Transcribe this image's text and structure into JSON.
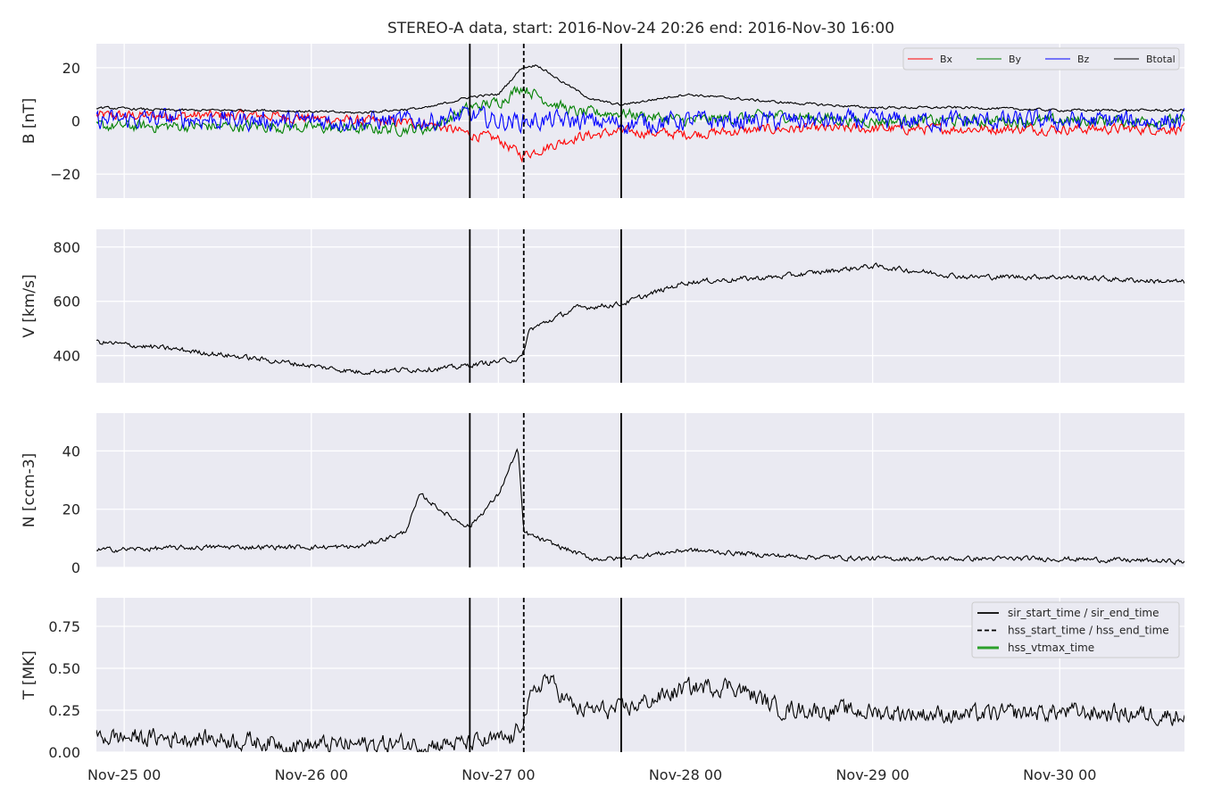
{
  "title": "STEREO-A data, start: 2016-Nov-24 20:26  end: 2016-Nov-30 16:00",
  "x_axis": {
    "start": "2016-11-24T20:26",
    "end": "2016-11-30T16:00",
    "ticks": [
      {
        "time": "2016-11-25T00:00",
        "label": "Nov-25 00"
      },
      {
        "time": "2016-11-26T00:00",
        "label": "Nov-26 00"
      },
      {
        "time": "2016-11-27T00:00",
        "label": "Nov-27 00"
      },
      {
        "time": "2016-11-28T00:00",
        "label": "Nov-28 00"
      },
      {
        "time": "2016-11-29T00:00",
        "label": "Nov-29 00"
      },
      {
        "time": "2016-11-30T00:00",
        "label": "Nov-30 00"
      }
    ]
  },
  "event_markers": [
    {
      "time": "2016-11-26T20:20",
      "style": "solid"
    },
    {
      "time": "2016-11-27T03:15",
      "style": "dashed"
    },
    {
      "time": "2016-11-27T15:45",
      "style": "solid"
    }
  ],
  "event_legend": [
    {
      "label": "sir_start_time / sir_end_time",
      "style": "solid",
      "color": "#000000"
    },
    {
      "label": "hss_start_time / hss_end_time",
      "style": "dashed",
      "color": "#000000"
    },
    {
      "label": "hss_vtmax_time",
      "style": "solid",
      "color": "#2ca02c"
    }
  ],
  "colors": {
    "Bx": "#ff0000",
    "By": "#008000",
    "Bz": "#0000ff",
    "Btotal": "#000000",
    "plot_bg": "#eaeaf2",
    "grid": "#ffffff"
  },
  "chart_data": [
    {
      "type": "line",
      "ylabel": "B [nT]",
      "ylim": [
        -29,
        29
      ],
      "yticks": [
        {
          "value": -20,
          "label": "−20"
        },
        {
          "value": 0,
          "label": "0"
        },
        {
          "value": 20,
          "label": "20"
        }
      ],
      "legend": "top-right",
      "grid": true,
      "series": [
        {
          "name": "Bx",
          "color": "#ff0000",
          "kind": "noisy",
          "noise": 1.6,
          "x": [
            "2016-11-24T20:26",
            "2016-11-25T06:00",
            "2016-11-25T18:00",
            "2016-11-26T06:00",
            "2016-11-26T15:00",
            "2016-11-26T20:20",
            "2016-11-27T00:00",
            "2016-11-27T03:00",
            "2016-11-27T06:00",
            "2016-11-27T10:00",
            "2016-11-27T15:45",
            "2016-11-28T00:00",
            "2016-11-28T12:00",
            "2016-11-29T00:00",
            "2016-11-29T12:00",
            "2016-11-30T00:00",
            "2016-11-30T16:00"
          ],
          "y": [
            2,
            2,
            2,
            0,
            -1,
            -5,
            -7,
            -13,
            -10,
            -6,
            -4,
            -5,
            -3,
            -3,
            -3,
            -3,
            -3
          ]
        },
        {
          "name": "By",
          "color": "#008000",
          "kind": "noisy",
          "noise": 1.8,
          "x": [
            "2016-11-24T20:26",
            "2016-11-25T06:00",
            "2016-11-25T18:00",
            "2016-11-26T06:00",
            "2016-11-26T15:00",
            "2016-11-26T20:20",
            "2016-11-27T00:00",
            "2016-11-27T03:00",
            "2016-11-27T06:00",
            "2016-11-27T10:00",
            "2016-11-27T15:45",
            "2016-11-28T00:00",
            "2016-11-28T12:00",
            "2016-11-29T00:00",
            "2016-11-29T12:00",
            "2016-11-30T00:00",
            "2016-11-30T16:00"
          ],
          "y": [
            -2,
            -2,
            -2,
            -3,
            -3,
            5,
            7,
            13,
            8,
            3,
            3,
            0,
            2,
            0,
            0,
            0,
            0
          ]
        },
        {
          "name": "Bz",
          "color": "#0000ff",
          "kind": "noisy",
          "noise": 3.0,
          "x": [
            "2016-11-24T20:26",
            "2016-11-25T06:00",
            "2016-11-25T18:00",
            "2016-11-26T06:00",
            "2016-11-26T15:00",
            "2016-11-26T20:20",
            "2016-11-27T00:00",
            "2016-11-27T03:00",
            "2016-11-27T06:00",
            "2016-11-27T10:00",
            "2016-11-27T15:45",
            "2016-11-28T00:00",
            "2016-11-28T12:00",
            "2016-11-29T00:00",
            "2016-11-29T12:00",
            "2016-11-30T00:00",
            "2016-11-30T16:00"
          ],
          "y": [
            0,
            1,
            0,
            0,
            0,
            2,
            0,
            0,
            0,
            0,
            -1,
            0,
            0,
            0,
            0,
            0,
            0
          ]
        },
        {
          "name": "Btotal",
          "color": "#000000",
          "kind": "noisy",
          "noise": 0.4,
          "x": [
            "2016-11-24T20:26",
            "2016-11-25T06:00",
            "2016-11-25T18:00",
            "2016-11-26T06:00",
            "2016-11-26T15:00",
            "2016-11-26T20:20",
            "2016-11-27T00:00",
            "2016-11-27T03:00",
            "2016-11-27T05:00",
            "2016-11-27T08:00",
            "2016-11-27T12:00",
            "2016-11-27T15:45",
            "2016-11-28T00:00",
            "2016-11-28T12:00",
            "2016-11-29T00:00",
            "2016-11-29T12:00",
            "2016-11-30T00:00",
            "2016-11-30T16:00"
          ],
          "y": [
            5,
            4,
            4,
            3,
            5,
            9,
            10,
            20,
            21,
            15,
            8,
            6,
            10,
            7,
            5,
            5,
            4,
            4
          ]
        }
      ]
    },
    {
      "type": "line",
      "ylabel": "V [km/s]",
      "ylim": [
        300,
        865
      ],
      "yticks": [
        {
          "value": 400,
          "label": "400"
        },
        {
          "value": 600,
          "label": "600"
        },
        {
          "value": 800,
          "label": "800"
        }
      ],
      "grid": true,
      "series": [
        {
          "color": "#000000",
          "kind": "noisy",
          "noise": 8,
          "x": [
            "2016-11-24T20:26",
            "2016-11-25T06:00",
            "2016-11-25T18:00",
            "2016-11-26T06:00",
            "2016-11-26T18:00",
            "2016-11-26T20:20",
            "2016-11-27T03:00",
            "2016-11-27T04:00",
            "2016-11-27T10:00",
            "2016-11-27T15:45",
            "2016-11-28T00:00",
            "2016-11-28T12:00",
            "2016-11-29T00:00",
            "2016-11-29T12:00",
            "2016-11-30T00:00",
            "2016-11-30T16:00"
          ],
          "y": [
            450,
            425,
            385,
            340,
            355,
            365,
            390,
            495,
            575,
            590,
            670,
            690,
            730,
            690,
            690,
            670
          ]
        }
      ]
    },
    {
      "type": "line",
      "ylabel": "N [ccm-3]",
      "ylim": [
        0,
        53
      ],
      "yticks": [
        {
          "value": 0,
          "label": "0"
        },
        {
          "value": 20,
          "label": "20"
        },
        {
          "value": 40,
          "label": "40"
        }
      ],
      "grid": true,
      "series": [
        {
          "color": "#000000",
          "kind": "noisy",
          "noise": 0.7,
          "x": [
            "2016-11-24T20:26",
            "2016-11-25T12:00",
            "2016-11-26T06:00",
            "2016-11-26T12:00",
            "2016-11-26T14:00",
            "2016-11-26T18:00",
            "2016-11-26T20:20",
            "2016-11-27T00:00",
            "2016-11-27T02:30",
            "2016-11-27T03:15",
            "2016-11-27T06:00",
            "2016-11-27T12:00",
            "2016-11-27T15:45",
            "2016-11-28T00:00",
            "2016-11-28T12:00",
            "2016-11-29T00:00",
            "2016-11-30T00:00",
            "2016-11-30T16:00"
          ],
          "y": [
            6,
            7,
            7,
            12,
            25,
            17,
            14,
            25,
            41,
            12,
            9,
            3,
            3,
            6,
            4,
            3,
            3,
            2
          ]
        }
      ]
    },
    {
      "type": "line",
      "ylabel": "T [MK]",
      "ylim": [
        0,
        0.92
      ],
      "yticks": [
        {
          "value": 0,
          "label": "0.00"
        },
        {
          "value": 0.25,
          "label": "0.25"
        },
        {
          "value": 0.5,
          "label": "0.50"
        },
        {
          "value": 0.75,
          "label": "0.75"
        }
      ],
      "legend": "top-right",
      "grid": true,
      "series": [
        {
          "color": "#000000",
          "kind": "noisy",
          "noise": 0.045,
          "x": [
            "2016-11-24T20:26",
            "2016-11-25T12:00",
            "2016-11-26T00:00",
            "2016-11-26T12:00",
            "2016-11-26T20:20",
            "2016-11-27T02:00",
            "2016-11-27T04:00",
            "2016-11-27T06:00",
            "2016-11-27T10:00",
            "2016-11-27T15:45",
            "2016-11-28T00:00",
            "2016-11-28T06:00",
            "2016-11-28T12:00",
            "2016-11-29T00:00",
            "2016-11-29T12:00",
            "2016-11-30T00:00",
            "2016-11-30T16:00"
          ],
          "y": [
            0.09,
            0.08,
            0.04,
            0.05,
            0.05,
            0.08,
            0.3,
            0.45,
            0.25,
            0.25,
            0.38,
            0.4,
            0.26,
            0.24,
            0.22,
            0.24,
            0.22
          ]
        }
      ]
    }
  ]
}
